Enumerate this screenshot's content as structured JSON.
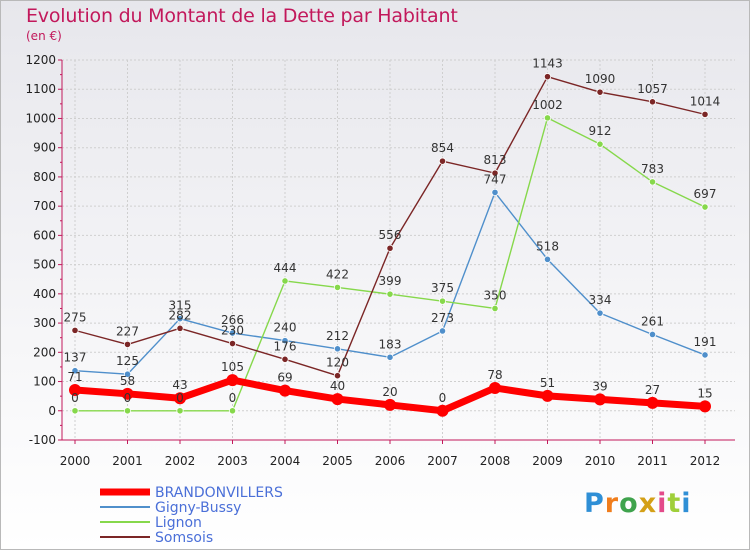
{
  "title": "Evolution du Montant de la Dette par Habitant",
  "subtitle": "(en €)",
  "logo": "Proxiti",
  "chart_data": {
    "type": "line",
    "x": [
      "2000",
      "2001",
      "2002",
      "2003",
      "2004",
      "2005",
      "2006",
      "2007",
      "2008",
      "2009",
      "2010",
      "2011",
      "2012"
    ],
    "ylim": [
      -100,
      1200
    ],
    "yticks": [
      -100,
      0,
      100,
      200,
      300,
      400,
      500,
      600,
      700,
      800,
      900,
      1000,
      1100,
      1200
    ],
    "legend_position": "bottom-left",
    "series": [
      {
        "name": "BRANDONVILLERS",
        "color": "#ff0000",
        "values": [
          71,
          58,
          43,
          105,
          69,
          40,
          20,
          0,
          78,
          51,
          39,
          27,
          15
        ]
      },
      {
        "name": "Gigny-Bussy",
        "color": "#4f8fcb",
        "values": [
          137,
          125,
          315,
          266,
          240,
          212,
          183,
          273,
          747,
          518,
          334,
          261,
          191
        ]
      },
      {
        "name": "Lignon",
        "color": "#86d84b",
        "values": [
          0,
          0,
          0,
          0,
          444,
          422,
          399,
          375,
          350,
          1002,
          912,
          783,
          697
        ]
      },
      {
        "name": "Somsois",
        "color": "#7b2626",
        "values": [
          275,
          227,
          282,
          230,
          176,
          120,
          556,
          854,
          813,
          1143,
          1090,
          1057,
          1014
        ]
      }
    ]
  }
}
